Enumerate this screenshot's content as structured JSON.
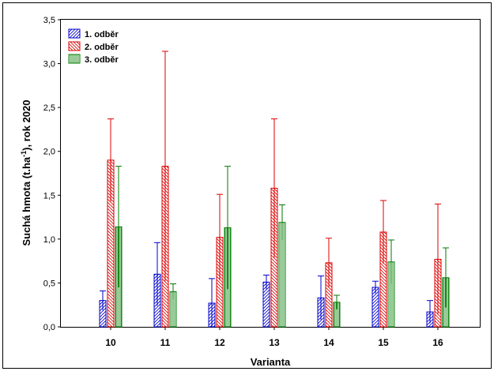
{
  "chart_data": {
    "type": "bar",
    "xlabel": "Varianta",
    "ylabel": {
      "prefix": "Suchá hmota (t.ha",
      "superscript": "-1",
      "suffix": "), rok 2020"
    },
    "ylim": [
      0,
      3.5
    ],
    "yticks": [
      "0,0",
      "0,5",
      "1,0",
      "1,5",
      "2,0",
      "2,5",
      "3,0",
      "3,5"
    ],
    "categories": [
      "10",
      "11",
      "12",
      "13",
      "14",
      "15",
      "16"
    ],
    "legend_position": "top-left",
    "grid": false,
    "series": [
      {
        "name": "1. odběr",
        "color": "#0000cc",
        "values": [
          0.3,
          0.6,
          0.27,
          0.51,
          0.33,
          0.45,
          0.17
        ],
        "error_upper": [
          0.41,
          0.96,
          0.55,
          0.59,
          0.58,
          0.52,
          0.3
        ]
      },
      {
        "name": "2. odběr",
        "color": "#dd0000",
        "values": [
          1.9,
          1.83,
          1.02,
          1.58,
          0.73,
          1.08,
          0.77
        ],
        "error_upper": [
          2.37,
          3.14,
          1.51,
          2.37,
          1.01,
          1.44,
          1.4
        ]
      },
      {
        "name": "3. odběr",
        "color": "#007a00",
        "values": [
          1.14,
          0.4,
          1.13,
          1.19,
          0.28,
          0.74,
          0.56
        ],
        "error_upper": [
          1.83,
          0.49,
          1.83,
          1.39,
          0.36,
          0.99,
          0.9
        ]
      }
    ]
  }
}
